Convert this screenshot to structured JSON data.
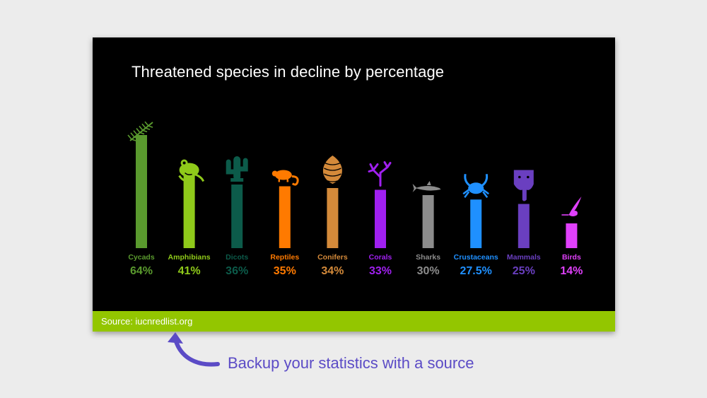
{
  "title": "Threatened species in decline by percentage",
  "source": "Source: iucnredlist.org",
  "caption": "Backup your statistics with a source",
  "colors": {
    "slide_bg": "#000000",
    "source_bar": "#93c600",
    "caption": "#5b4bc6"
  },
  "chart_data": {
    "type": "bar",
    "title": "Threatened species in decline by percentage",
    "xlabel": "",
    "ylabel": "",
    "ylim": [
      0,
      64
    ],
    "grid": false,
    "categories": [
      "Cycads",
      "Amphibians",
      "Dicots",
      "Reptiles",
      "Conifers",
      "Corals",
      "Sharks",
      "Crustaceans",
      "Mammals",
      "Birds"
    ],
    "values": [
      64,
      41,
      36,
      35,
      34,
      33,
      30,
      27.5,
      25,
      14
    ],
    "value_labels": [
      "64%",
      "41%",
      "36%",
      "35%",
      "34%",
      "33%",
      "30%",
      "27.5%",
      "25%",
      "14%"
    ],
    "colors": [
      "#5a9a2e",
      "#8fca1a",
      "#0c5b4a",
      "#ff7a00",
      "#d48a3a",
      "#a020f0",
      "#8c8c8c",
      "#1f90ff",
      "#6a3fc0",
      "#e040fb"
    ],
    "icons": [
      "fern-icon",
      "frog-icon",
      "cactus-icon",
      "chameleon-icon",
      "pinecone-icon",
      "coral-icon",
      "shark-icon",
      "crab-icon",
      "elephant-icon",
      "hummingbird-icon"
    ]
  }
}
